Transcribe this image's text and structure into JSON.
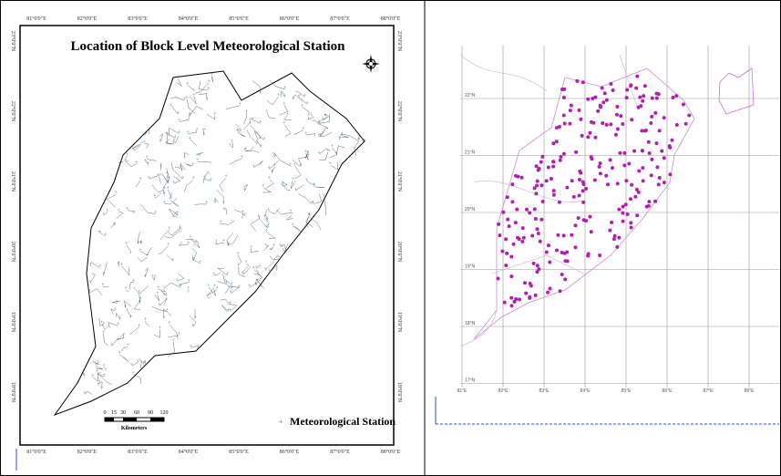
{
  "left_map": {
    "title": "Location of Block Level Meteorological Station",
    "longitude_labels": [
      "81°0'0\"E",
      "82°0'0\"E",
      "83°0'0\"E",
      "84°0'0\"E",
      "85°0'0\"E",
      "86°0'0\"E",
      "87°0'0\"E",
      "88°0'0\"E"
    ],
    "latitude_labels": [
      "23°0'0\"N",
      "22°0'0\"N",
      "21°0'0\"N",
      "20°0'0\"N",
      "19°0'0\"N",
      "18°0'0\"N"
    ],
    "scale_labels": [
      "0",
      "15",
      "30",
      "60",
      "90",
      "120"
    ],
    "scale_unit": "Kilometers",
    "legend": "Meteorological Station"
  },
  "right_map": {
    "latitude_labels": [
      "22°N",
      "21°N",
      "20°N",
      "19°N",
      "18°N",
      "17°N"
    ],
    "longitude_labels": [
      "81°E",
      "82°E",
      "83°E",
      "84°E",
      "85°E",
      "86°E",
      "87°E",
      "88°E"
    ]
  }
}
